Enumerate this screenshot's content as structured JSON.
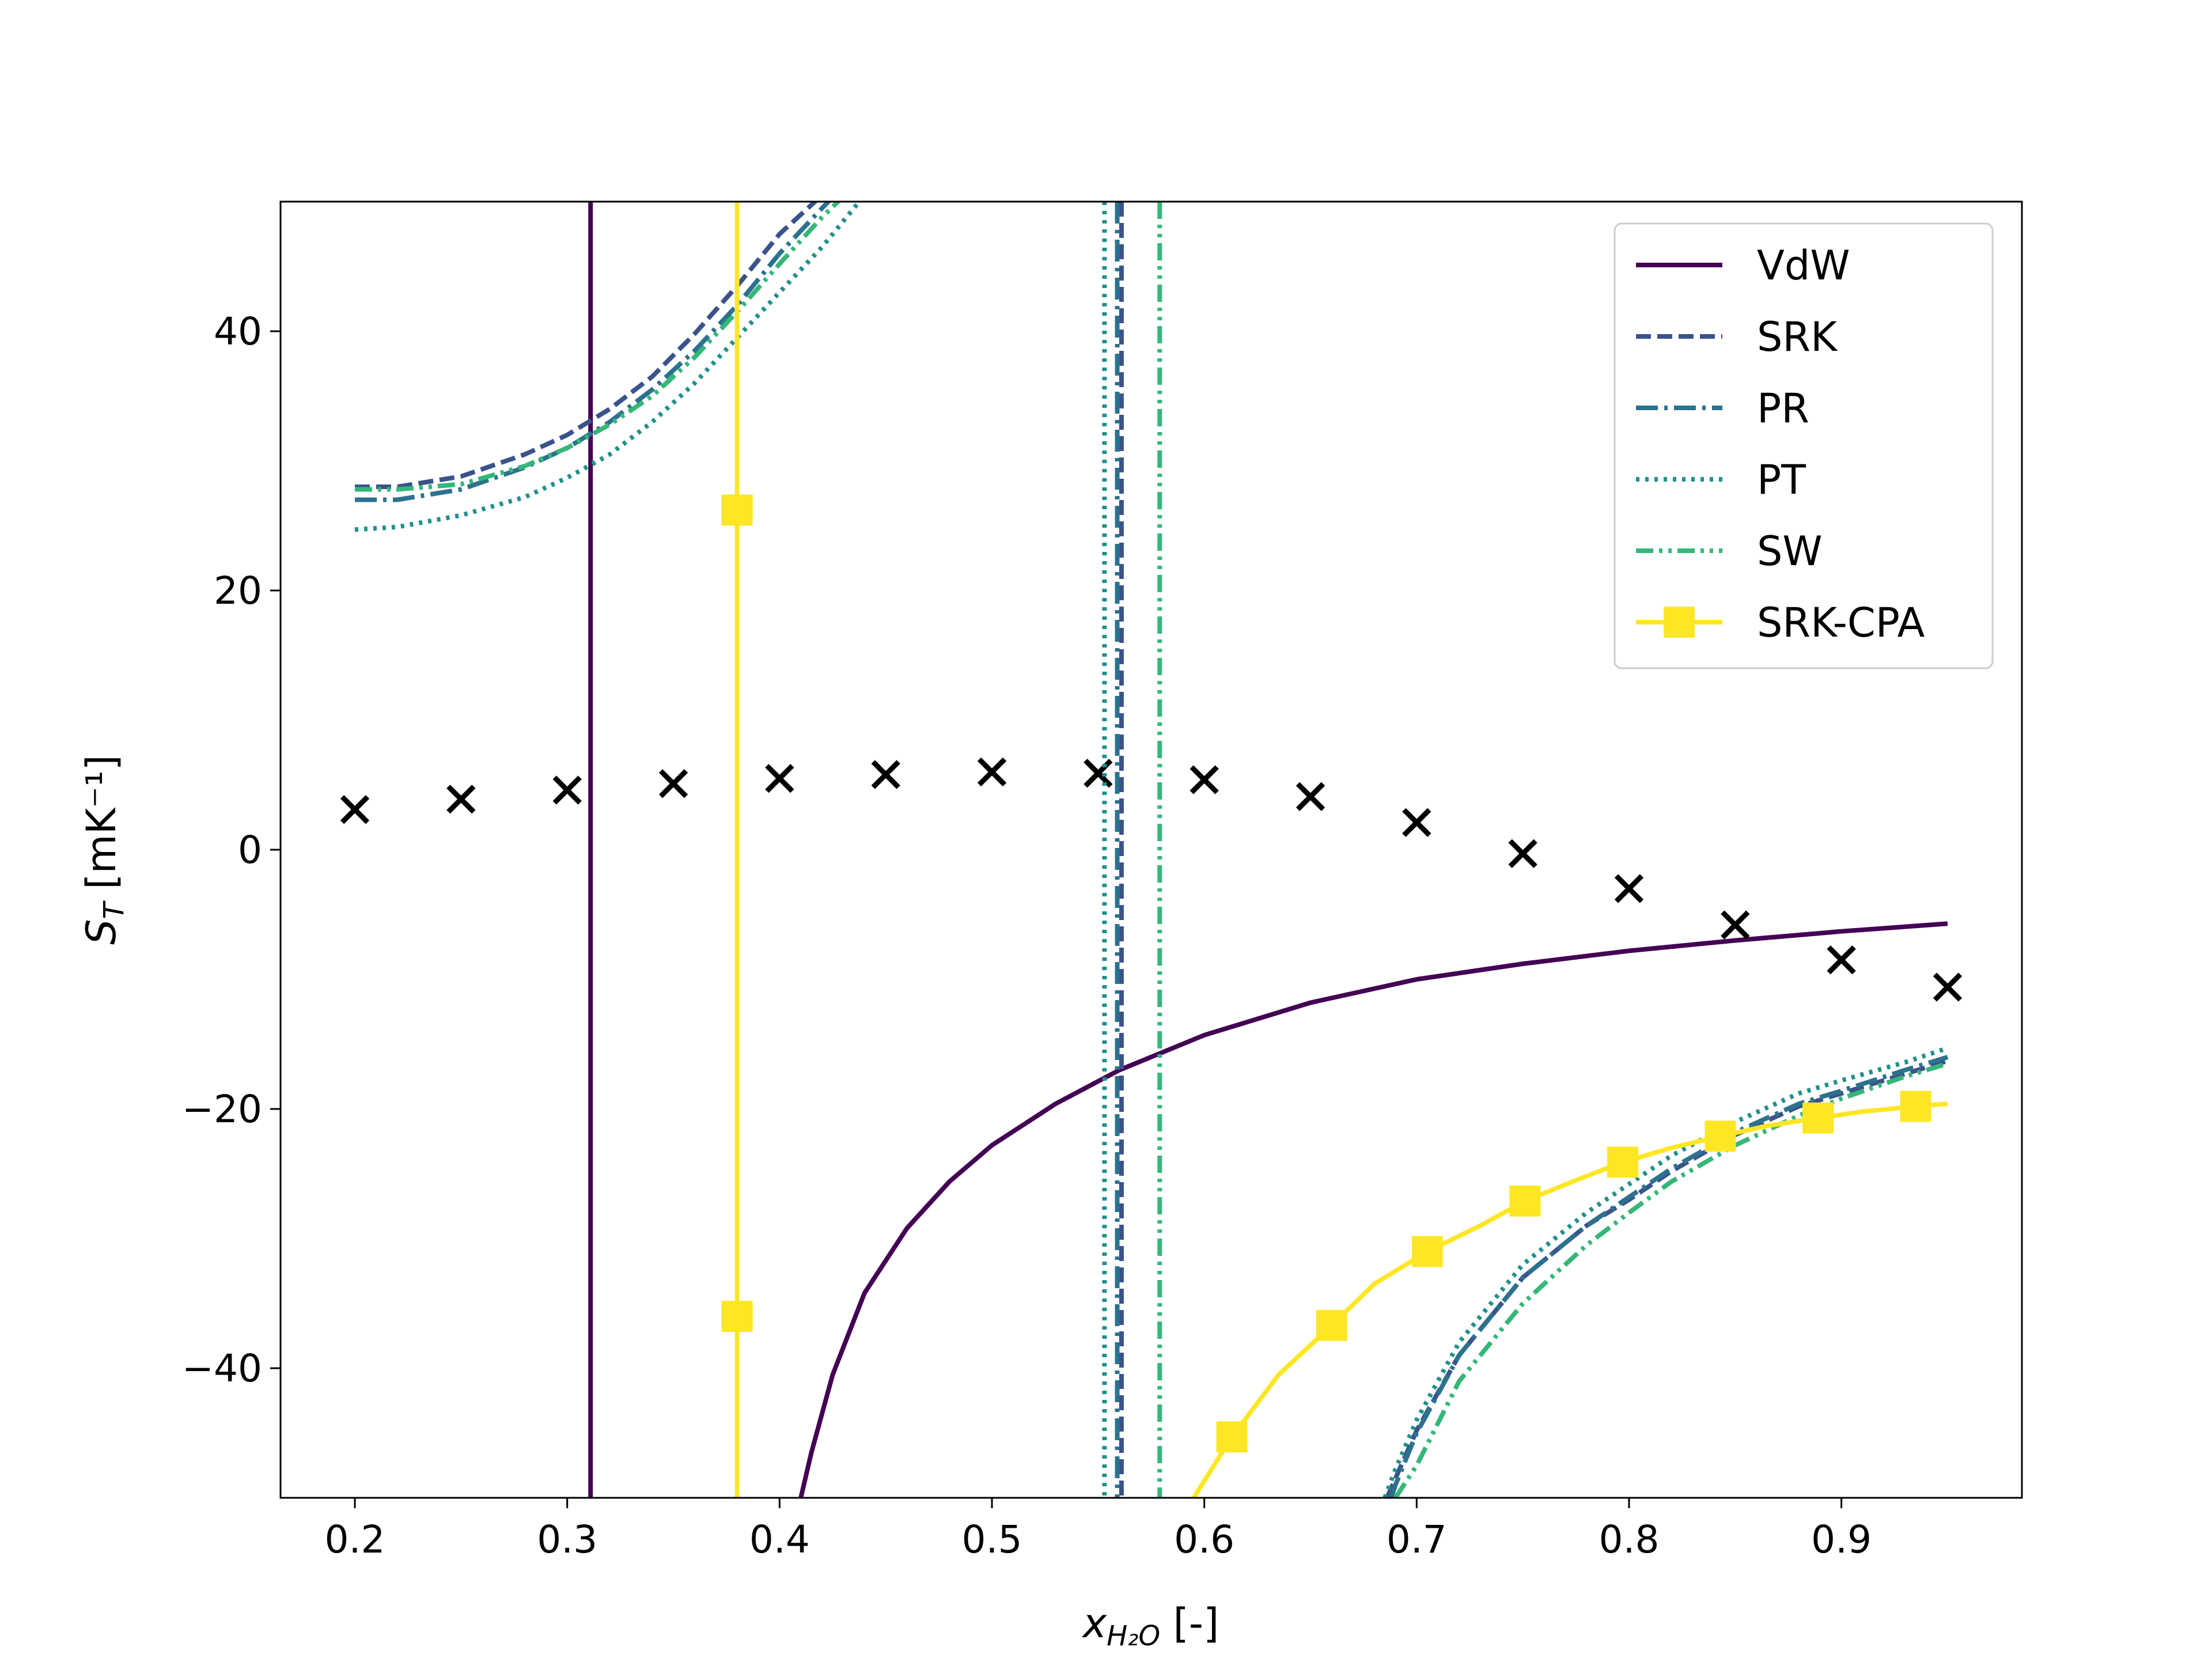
{
  "chart_data": {
    "type": "line",
    "title": "",
    "xlabel": "x",
    "xlabel_sub": "H₂O",
    "xlabel_suffix": " [-]",
    "ylabel": "S",
    "ylabel_sub": "T",
    "ylabel_suffix": " [mK⁻¹]",
    "xlim": [
      0.165,
      0.985
    ],
    "ylim": [
      -50,
      50
    ],
    "xticks": [
      0.2,
      0.3,
      0.4,
      0.5,
      0.6,
      0.7,
      0.8,
      0.9
    ],
    "xtick_labels": [
      "0.2",
      "0.3",
      "0.4",
      "0.5",
      "0.6",
      "0.7",
      "0.8",
      "0.9"
    ],
    "yticks": [
      -40,
      -20,
      0,
      20,
      40
    ],
    "ytick_labels": [
      "−40",
      "−20",
      "0",
      "20",
      "40"
    ],
    "grid": false,
    "legend_position": "top-right",
    "series": [
      {
        "name": "VdW",
        "color": "#440154",
        "style": "solid",
        "marker": "none",
        "asymptote": 0.311,
        "segments": [
          {
            "x": [
              0.311,
              0.311
            ],
            "y": [
              50,
              -50
            ]
          },
          {
            "x": [
              0.41,
              0.415,
              0.425,
              0.44,
              0.46,
              0.48,
              0.5,
              0.53,
              0.56,
              0.6,
              0.65,
              0.7,
              0.75,
              0.8,
              0.85,
              0.9,
              0.95
            ],
            "y": [
              -50,
              -46.5,
              -40.5,
              -34.2,
              -29.2,
              -25.6,
              -22.8,
              -19.6,
              -17.0,
              -14.3,
              -11.8,
              -10.0,
              -8.8,
              -7.8,
              -7.0,
              -6.3,
              -5.7
            ]
          }
        ]
      },
      {
        "name": "SRK",
        "color": "#3b528b",
        "style": "dashed",
        "marker": "none",
        "asymptote": 0.561,
        "segments": [
          {
            "x": [
              0.2,
              0.22,
              0.25,
              0.28,
              0.3,
              0.32,
              0.34,
              0.36,
              0.38,
              0.4,
              0.42,
              0.43
            ],
            "y": [
              28.0,
              28.0,
              28.8,
              30.5,
              32.0,
              34.0,
              36.5,
              39.8,
              43.5,
              47.5,
              50.5,
              52
            ]
          },
          {
            "x": [
              0.686,
              0.69,
              0.7,
              0.72,
              0.75,
              0.78,
              0.8,
              0.82,
              0.85,
              0.88,
              0.9,
              0.93,
              0.95
            ],
            "y": [
              -50,
              -48.5,
              -44.8,
              -39.0,
              -33.0,
              -29.0,
              -27.0,
              -24.8,
              -22.0,
              -19.8,
              -18.8,
              -17.3,
              -16.3
            ]
          }
        ]
      },
      {
        "name": "PR",
        "color": "#2c728e",
        "style": "dashdot",
        "marker": "none",
        "asymptote": 0.559,
        "segments": [
          {
            "x": [
              0.2,
              0.22,
              0.25,
              0.28,
              0.3,
              0.32,
              0.34,
              0.36,
              0.38,
              0.4,
              0.42,
              0.435
            ],
            "y": [
              27.0,
              27.0,
              27.8,
              29.5,
              31.0,
              33.0,
              35.5,
              38.5,
              42.0,
              46.0,
              49.5,
              52
            ]
          },
          {
            "x": [
              0.688,
              0.69,
              0.7,
              0.72,
              0.75,
              0.78,
              0.8,
              0.82,
              0.85,
              0.88,
              0.9,
              0.93,
              0.95
            ],
            "y": [
              -50,
              -49.0,
              -45.0,
              -39.0,
              -33.0,
              -29.0,
              -26.8,
              -24.6,
              -21.8,
              -19.6,
              -18.6,
              -17.0,
              -16.0
            ]
          }
        ]
      },
      {
        "name": "PT",
        "color": "#21918c",
        "style": "dotted",
        "marker": "none",
        "asymptote": 0.553,
        "segments": [
          {
            "x": [
              0.2,
              0.22,
              0.25,
              0.28,
              0.3,
              0.32,
              0.34,
              0.36,
              0.38,
              0.4,
              0.42,
              0.44
            ],
            "y": [
              24.7,
              24.9,
              25.8,
              27.2,
              28.7,
              30.5,
              33.0,
              36.0,
              39.5,
              43.0,
              46.5,
              50.5
            ]
          },
          {
            "x": [
              0.685,
              0.69,
              0.7,
              0.72,
              0.75,
              0.78,
              0.8,
              0.82,
              0.85,
              0.88,
              0.9,
              0.93,
              0.95
            ],
            "y": [
              -50,
              -47.8,
              -44.0,
              -38.0,
              -32.0,
              -28.0,
              -25.8,
              -23.6,
              -21.0,
              -18.8,
              -17.8,
              -16.4,
              -15.3
            ]
          }
        ]
      },
      {
        "name": "SW",
        "color": "#35b779",
        "style": "dashdotdot",
        "marker": "none",
        "asymptote": 0.579,
        "segments": [
          {
            "x": [
              0.2,
              0.22,
              0.25,
              0.28,
              0.3,
              0.32,
              0.34,
              0.36,
              0.38,
              0.4,
              0.42,
              0.44
            ],
            "y": [
              27.8,
              27.8,
              28.2,
              29.6,
              31.0,
              32.8,
              35.0,
              38.0,
              41.5,
              45.2,
              48.8,
              52
            ]
          },
          {
            "x": [
              0.69,
              0.7,
              0.72,
              0.75,
              0.78,
              0.8,
              0.82,
              0.85,
              0.88,
              0.9,
              0.93,
              0.95
            ],
            "y": [
              -50,
              -47.5,
              -41.0,
              -35.0,
              -30.5,
              -28.0,
              -25.6,
              -22.8,
              -20.5,
              -19.2,
              -17.5,
              -16.5
            ]
          }
        ]
      },
      {
        "name": "SRK-CPA",
        "color": "#fde725",
        "style": "solid",
        "marker": "square",
        "asymptote": 0.38,
        "segments": [
          {
            "x": [
              0.38,
              0.38
            ],
            "y": [
              50,
              -50
            ]
          },
          {
            "x": [
              0.595,
              0.613,
              0.635,
              0.66,
              0.68,
              0.705,
              0.73,
              0.751,
              0.775,
              0.797,
              0.82,
              0.843,
              0.865,
              0.889,
              0.91,
              0.935,
              0.95
            ],
            "y": [
              -50,
              -45.3,
              -40.5,
              -36.7,
              -33.5,
              -31.0,
              -29.0,
              -27.1,
              -25.5,
              -24.1,
              -23.0,
              -22.1,
              -21.3,
              -20.7,
              -20.2,
              -19.8,
              -19.6
            ]
          }
        ],
        "markers": {
          "x": [
            0.38,
            0.38,
            0.613,
            0.66,
            0.705,
            0.751,
            0.797,
            0.843,
            0.889,
            0.935
          ],
          "y": [
            26.2,
            -36.0,
            -45.3,
            -36.7,
            -31.0,
            -27.1,
            -24.1,
            -22.1,
            -20.7,
            -19.8
          ]
        }
      },
      {
        "name": "",
        "color": "#000000",
        "style": "none",
        "marker": "x",
        "markers": {
          "x": [
            0.2,
            0.25,
            0.3,
            0.35,
            0.4,
            0.45,
            0.5,
            0.55,
            0.6,
            0.65,
            0.7,
            0.75,
            0.8,
            0.85,
            0.9,
            0.95
          ],
          "y": [
            3.1,
            3.9,
            4.6,
            5.1,
            5.5,
            5.8,
            6.0,
            5.9,
            5.4,
            4.1,
            2.1,
            -0.3,
            -3.0,
            -5.8,
            -8.5,
            -10.6
          ]
        }
      }
    ]
  }
}
